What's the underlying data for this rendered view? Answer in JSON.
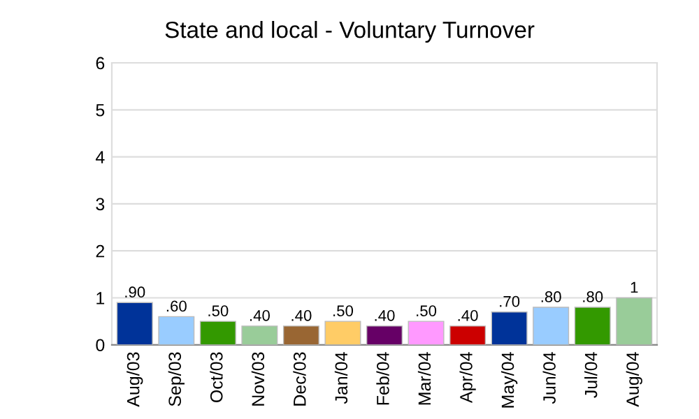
{
  "chart_data": {
    "type": "bar",
    "title": "State and local - Voluntary Turnover",
    "categories": [
      "Aug/03",
      "Sep/03",
      "Oct/03",
      "Nov/03",
      "Dec/03",
      "Jan/04",
      "Feb/04",
      "Mar/04",
      "Apr/04",
      "May/04",
      "Jun/04",
      "Jul/04",
      "Aug/04"
    ],
    "values": [
      0.9,
      0.6,
      0.5,
      0.4,
      0.4,
      0.5,
      0.4,
      0.5,
      0.4,
      0.7,
      0.8,
      0.8,
      1
    ],
    "value_labels": [
      ".90",
      ".60",
      ".50",
      ".40",
      ".40",
      ".50",
      ".40",
      ".50",
      ".40",
      ".70",
      ".80",
      ".80",
      "1"
    ],
    "colors": [
      "#003399",
      "#99ccff",
      "#339900",
      "#99cc99",
      "#996633",
      "#ffcc66",
      "#660066",
      "#ff99ff",
      "#cc0000",
      "#003399",
      "#99ccff",
      "#339900",
      "#99cc99"
    ],
    "ylim": [
      0,
      6
    ],
    "yticks": [
      0,
      1,
      2,
      3,
      4,
      5,
      6
    ],
    "grid": "y",
    "legend": false
  }
}
